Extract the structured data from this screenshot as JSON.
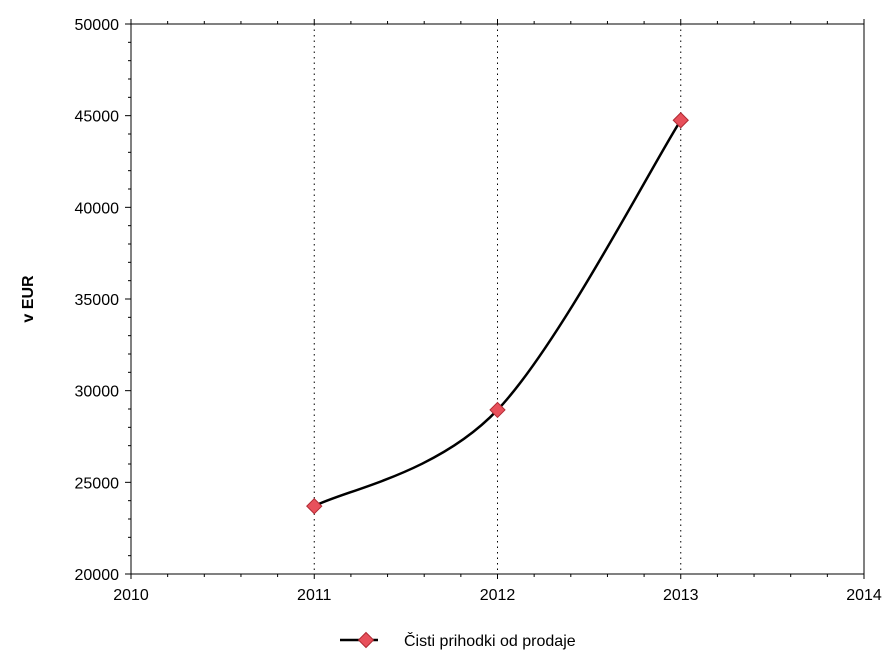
{
  "chart_data": {
    "type": "line",
    "title": "",
    "xlabel": "",
    "ylabel": "v EUR",
    "xlim": [
      2010,
      2014
    ],
    "ylim": [
      20000,
      50000
    ],
    "x_ticks": [
      "2010",
      "2011",
      "2012",
      "2013",
      "2014"
    ],
    "y_ticks": [
      "20000",
      "25000",
      "30000",
      "35000",
      "40000",
      "45000",
      "50000"
    ],
    "vertical_grid": "dotted",
    "smooth": true,
    "legend_position": "bottom-center",
    "series": [
      {
        "name": "Čisti prihodki od prodaje",
        "x": [
          2011,
          2012,
          2013
        ],
        "values": [
          23700,
          28950,
          44750
        ],
        "line_color": "#000000",
        "marker_color": "#e8505b",
        "marker": "diamond"
      }
    ]
  }
}
